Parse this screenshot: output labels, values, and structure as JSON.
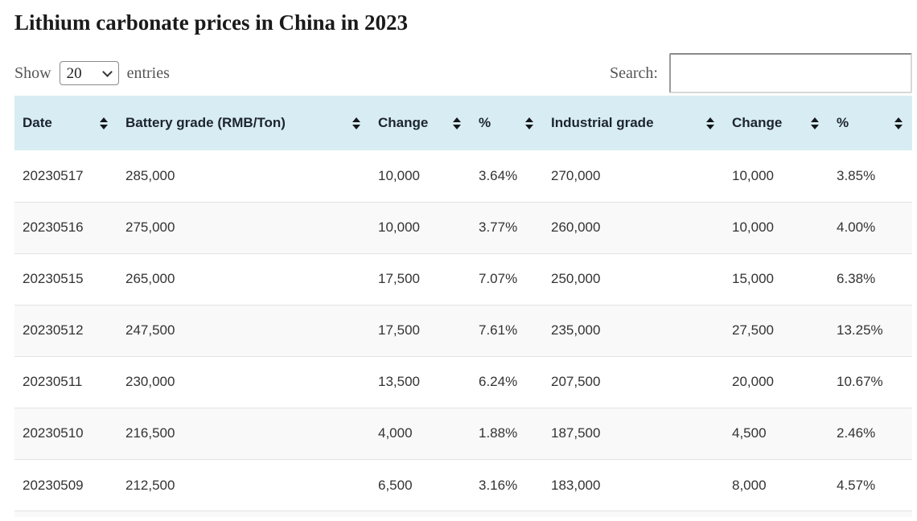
{
  "page": {
    "title": "Lithium carbonate prices in China in 2023"
  },
  "controls": {
    "show_label": "Show",
    "entries_label": "entries",
    "page_size_selected": "20",
    "search_label": "Search:",
    "search_value": ""
  },
  "table": {
    "columns": [
      {
        "label": "Date"
      },
      {
        "label": "Battery grade (RMB/Ton)"
      },
      {
        "label": "Change"
      },
      {
        "label": "%"
      },
      {
        "label": "Industrial grade"
      },
      {
        "label": "Change"
      },
      {
        "label": "%"
      }
    ],
    "rows": [
      [
        "20230517",
        "285,000",
        "10,000",
        "3.64%",
        "270,000",
        "10,000",
        "3.85%"
      ],
      [
        "20230516",
        "275,000",
        "10,000",
        "3.77%",
        "260,000",
        "10,000",
        "4.00%"
      ],
      [
        "20230515",
        "265,000",
        "17,500",
        "7.07%",
        "250,000",
        "15,000",
        "6.38%"
      ],
      [
        "20230512",
        "247,500",
        "17,500",
        "7.61%",
        "235,000",
        "27,500",
        "13.25%"
      ],
      [
        "20230511",
        "230,000",
        "13,500",
        "6.24%",
        "207,500",
        "20,000",
        "10.67%"
      ],
      [
        "20230510",
        "216,500",
        "4,000",
        "1.88%",
        "187,500",
        "4,500",
        "2.46%"
      ],
      [
        "20230509",
        "212,500",
        "6,500",
        "3.16%",
        "183,000",
        "8,000",
        "4.57%"
      ]
    ]
  },
  "colors": {
    "header_bg": "#d8ecf3",
    "stripe_bg": "#f9f9f9",
    "row_border": "#e3e3e3",
    "cell_text": "#333333",
    "header_text": "#1c2430",
    "muted_text": "#555555",
    "title_text": "#1a1a1a"
  }
}
